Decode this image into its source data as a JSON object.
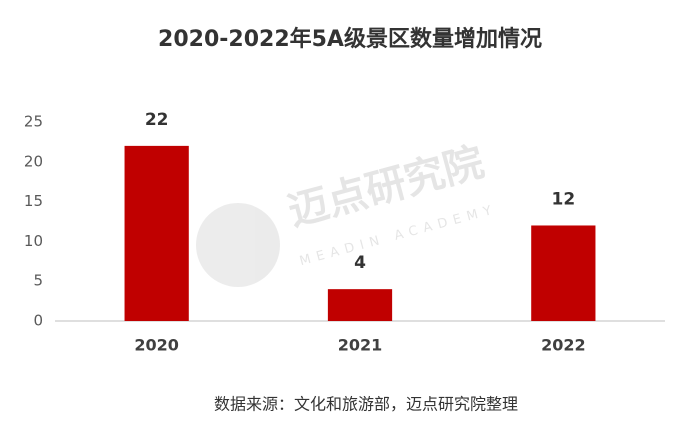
{
  "chart_data": {
    "type": "bar",
    "title": "2020-2022年5A级景区数量增加情况",
    "categories": [
      "2020",
      "2021",
      "2022"
    ],
    "values": [
      22,
      4,
      12
    ],
    "color": "#c00000",
    "ylim": [
      0,
      25
    ],
    "yticks": [
      0,
      5,
      10,
      15,
      20,
      25
    ],
    "grid": false,
    "source": "数据来源：文化和旅游部，迈点研究院整理"
  },
  "watermark": {
    "text": "迈点研究院",
    "subtext": "MEADIN ACADEMY"
  }
}
